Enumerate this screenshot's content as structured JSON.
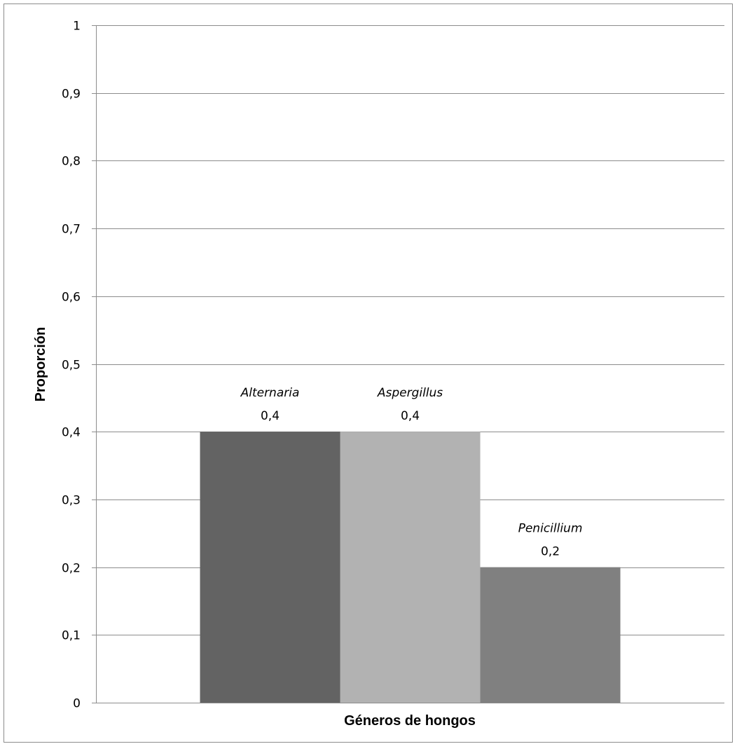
{
  "chart_data": {
    "type": "bar",
    "title": "",
    "xlabel": "Géneros de hongos",
    "ylabel": "Proporción",
    "ylim": [
      0,
      1
    ],
    "yticks": [
      "0",
      "0,1",
      "0,2",
      "0,3",
      "0,4",
      "0,5",
      "0,6",
      "0,7",
      "0,8",
      "0,9",
      "1"
    ],
    "grid": true,
    "legend": "none",
    "categories": [
      "Alternaria",
      "Aspergillus",
      "Penicillium"
    ],
    "values": [
      0.4,
      0.4,
      0.2
    ],
    "value_labels": [
      "0,4",
      "0,4",
      "0,2"
    ],
    "colors": [
      "#636363",
      "#b2b2b2",
      "#808080"
    ]
  }
}
